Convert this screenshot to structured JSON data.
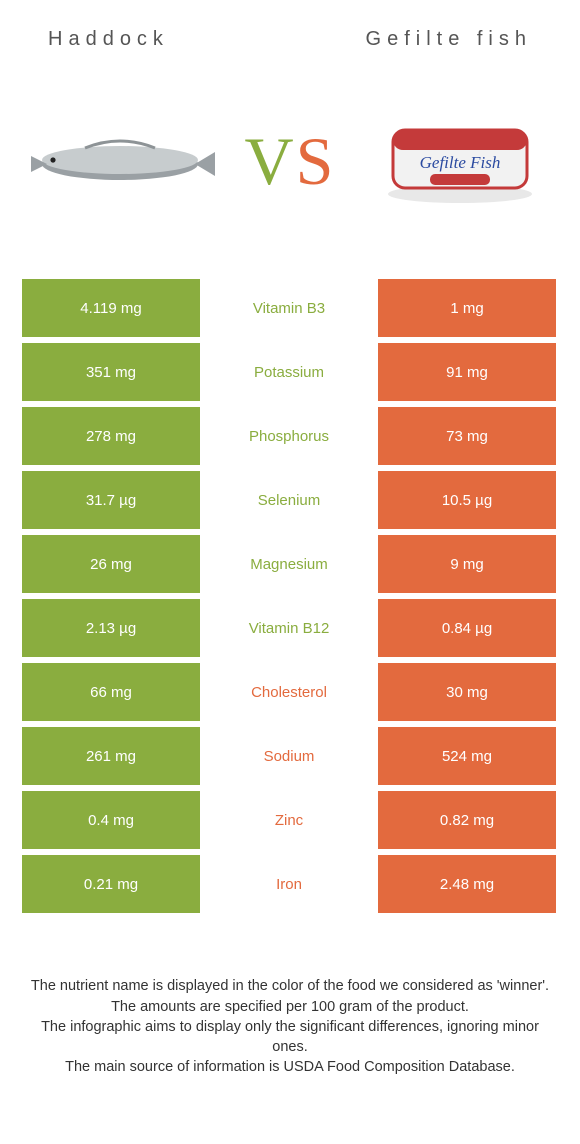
{
  "colors": {
    "left": "#8aad3f",
    "right": "#e36a3e",
    "bg": "#ffffff",
    "header_text": "#555555",
    "body_text": "#333333"
  },
  "header": {
    "left": "Haddock",
    "right": "Gefilte fish"
  },
  "vs": {
    "v": "V",
    "s": "S"
  },
  "rows": [
    {
      "left": "4.119 mg",
      "mid": "Vitamin B3",
      "winner": "left",
      "right": "1 mg"
    },
    {
      "left": "351 mg",
      "mid": "Potassium",
      "winner": "left",
      "right": "91 mg"
    },
    {
      "left": "278 mg",
      "mid": "Phosphorus",
      "winner": "left",
      "right": "73 mg"
    },
    {
      "left": "31.7 µg",
      "mid": "Selenium",
      "winner": "left",
      "right": "10.5 µg"
    },
    {
      "left": "26 mg",
      "mid": "Magnesium",
      "winner": "left",
      "right": "9 mg"
    },
    {
      "left": "2.13 µg",
      "mid": "Vitamin B12",
      "winner": "left",
      "right": "0.84 µg"
    },
    {
      "left": "66 mg",
      "mid": "Cholesterol",
      "winner": "right",
      "right": "30 mg"
    },
    {
      "left": "261 mg",
      "mid": "Sodium",
      "winner": "right",
      "right": "524 mg"
    },
    {
      "left": "0.4 mg",
      "mid": "Zinc",
      "winner": "right",
      "right": "0.82 mg"
    },
    {
      "left": "0.21 mg",
      "mid": "Iron",
      "winner": "right",
      "right": "2.48 mg"
    }
  ],
  "footer": {
    "l1": "The nutrient name is displayed in the color of the food we considered as 'winner'.",
    "l2": "The amounts are specified per 100 gram of the product.",
    "l3": "The infographic aims to display only the significant differences, ignoring minor ones.",
    "l4": "The main source of information is USDA Food Composition Database."
  }
}
